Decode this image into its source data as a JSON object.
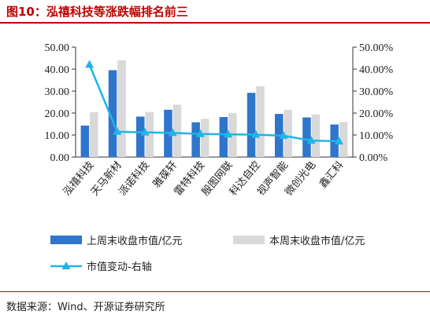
{
  "title": "图10：泓禧科技等涨跌幅排名前三",
  "source": "数据来源：Wind、开源证券研究所",
  "colors": {
    "this_week": "#2e75cc",
    "last_week": "#d9d9d9",
    "change": "#1fb5e8",
    "accent": "#c00000"
  },
  "chart_data": {
    "type": "bar",
    "categories": [
      "泓禧科技",
      "天马新材",
      "派诺科技",
      "雅葆轩",
      "雷特科技",
      "殷图网联",
      "科达自控",
      "视声智能",
      "微创光电",
      "鑫汇科"
    ],
    "series": [
      {
        "name": "上周末收盘市值/亿元",
        "type": "bar",
        "values": [
          14.3,
          39.5,
          18.4,
          21.5,
          15.8,
          18.2,
          29.2,
          19.6,
          18.0,
          14.8
        ]
      },
      {
        "name": "本周末收盘市值/亿元",
        "type": "bar",
        "values": [
          20.4,
          44.0,
          20.5,
          23.8,
          17.4,
          20.0,
          32.2,
          21.5,
          19.4,
          15.9
        ]
      },
      {
        "name": "市值变动-右轴",
        "type": "line",
        "axis": "right",
        "values": [
          42.0,
          11.5,
          11.2,
          11.0,
          10.5,
          10.3,
          10.2,
          9.7,
          7.5,
          7.2
        ]
      }
    ],
    "y_left": {
      "min": 0,
      "max": 50,
      "ticks": [
        "0.00",
        "10.00",
        "20.00",
        "30.00",
        "40.00",
        "50.00"
      ]
    },
    "y_right": {
      "min": 0,
      "max": 50,
      "ticks": [
        "0.00%",
        "10.00%",
        "20.00%",
        "30.00%",
        "40.00%",
        "50.00%"
      ]
    },
    "legend_position": "bottom",
    "grid": false
  }
}
